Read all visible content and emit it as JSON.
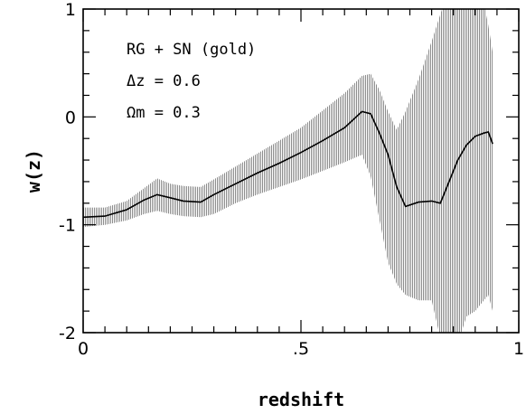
{
  "chart_data": {
    "type": "line",
    "title": "",
    "xlabel": "redshift",
    "ylabel": "w(z)",
    "xlim": [
      0,
      1
    ],
    "ylim": [
      -2,
      1
    ],
    "x_tick_labels": [
      {
        "value": 0,
        "label": "0"
      },
      {
        "value": 0.5,
        "label": ".5"
      },
      {
        "value": 1,
        "label": "1"
      }
    ],
    "y_tick_labels": [
      {
        "value": -2,
        "label": "-2"
      },
      {
        "value": -1,
        "label": "-1"
      },
      {
        "value": 0,
        "label": "0"
      },
      {
        "value": 1,
        "label": "1"
      }
    ],
    "annotations": [
      {
        "text": "RG + SN (gold)"
      },
      {
        "text": "Δz = 0.6"
      },
      {
        "text": "Ωm = 0.3"
      }
    ],
    "grid": false,
    "series": [
      {
        "style": "solid-line-with-shaded-error-band",
        "color": "#000000",
        "band_color": "#9a9a9a",
        "x": [
          0.0,
          0.05,
          0.1,
          0.14,
          0.17,
          0.2,
          0.23,
          0.27,
          0.3,
          0.35,
          0.4,
          0.45,
          0.5,
          0.55,
          0.6,
          0.64,
          0.66,
          0.68,
          0.7,
          0.72,
          0.74,
          0.77,
          0.8,
          0.82,
          0.84,
          0.86,
          0.88,
          0.9,
          0.92,
          0.93,
          0.94
        ],
        "y": [
          -0.93,
          -0.92,
          -0.86,
          -0.77,
          -0.72,
          -0.75,
          -0.78,
          -0.79,
          -0.72,
          -0.62,
          -0.52,
          -0.43,
          -0.33,
          -0.22,
          -0.1,
          0.05,
          0.03,
          -0.15,
          -0.35,
          -0.65,
          -0.83,
          -0.79,
          -0.78,
          -0.8,
          -0.6,
          -0.4,
          -0.26,
          -0.18,
          -0.15,
          -0.14,
          -0.25
        ],
        "lower": [
          -1.02,
          -1.0,
          -0.96,
          -0.9,
          -0.87,
          -0.9,
          -0.92,
          -0.93,
          -0.9,
          -0.8,
          -0.72,
          -0.65,
          -0.58,
          -0.5,
          -0.42,
          -0.35,
          -0.55,
          -0.95,
          -1.35,
          -1.55,
          -1.65,
          -1.7,
          -1.7,
          -2.05,
          -2.3,
          -2.1,
          -1.85,
          -1.8,
          -1.7,
          -1.65,
          -1.8
        ],
        "upper": [
          -0.84,
          -0.84,
          -0.78,
          -0.66,
          -0.57,
          -0.62,
          -0.64,
          -0.65,
          -0.58,
          -0.46,
          -0.34,
          -0.22,
          -0.1,
          0.06,
          0.22,
          0.38,
          0.4,
          0.25,
          0.05,
          -0.12,
          0.05,
          0.35,
          0.7,
          0.95,
          1.2,
          1.25,
          1.2,
          1.2,
          1.05,
          0.85,
          0.6
        ]
      }
    ]
  }
}
